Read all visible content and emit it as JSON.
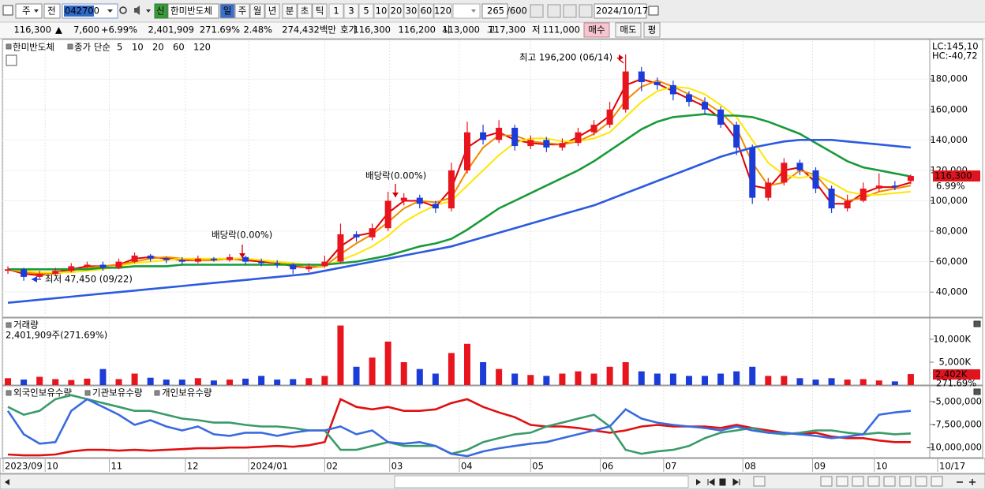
{
  "toolbar": {
    "market": "주",
    "range": "전",
    "code": "042700",
    "badge": "신",
    "name": "한미반도체",
    "periods": [
      "일",
      "주",
      "월",
      "년",
      "분",
      "초",
      "틱"
    ],
    "intervals": [
      "1",
      "3",
      "5",
      "10",
      "20",
      "30",
      "60",
      "120"
    ],
    "count": "265",
    "max": "/600",
    "date": "2024/10/17"
  },
  "quote": {
    "price": "116,300",
    "arrow": "▲",
    "change": "7,600",
    "rate": "+6.99%",
    "volume": "2,401,909",
    "volume_ratio": "271.69%",
    "turnover": "2.48%",
    "amount": "274,432백만",
    "ask_label": "호가",
    "ask": "116,300",
    "bid": "116,200",
    "open_label": "시",
    "open": "113,000",
    "high_label": "고",
    "high": "117,300",
    "low_label": "저",
    "low": "111,000",
    "buy": "매수",
    "sell": "매도",
    "avg": "평"
  },
  "chart_data": [
    {
      "type": "candlestick",
      "legend_title": "한미반도체",
      "ma_label": "종가 단순",
      "up_color": "#e8141e",
      "down_color": "#1c3cd8",
      "open": [
        54000,
        55000,
        50000,
        52000,
        54000,
        57000,
        58000,
        56000,
        60000,
        64000,
        62000,
        61000,
        60000,
        62000,
        61000,
        63000,
        60000,
        59000,
        58000,
        55000,
        57000,
        60000,
        78000,
        76000,
        82000,
        100000,
        102000,
        98000,
        95000,
        120000,
        145000,
        140000,
        148000,
        136000,
        140000,
        135000,
        138000,
        145000,
        150000,
        160000,
        185000,
        178000,
        176000,
        170000,
        165000,
        160000,
        150000,
        135000,
        102000,
        112000,
        125000,
        120000,
        108000,
        95000,
        100000,
        108000,
        110000,
        113000
      ],
      "high": [
        57000,
        56000,
        54000,
        56000,
        59000,
        60000,
        60000,
        62000,
        66000,
        65000,
        63000,
        63000,
        64000,
        63000,
        65000,
        64000,
        62000,
        61000,
        59000,
        59000,
        64000,
        85000,
        80000,
        85000,
        106000,
        105000,
        104000,
        100000,
        125000,
        152000,
        150000,
        153000,
        150000,
        143000,
        142000,
        141000,
        148000,
        153000,
        165000,
        196200,
        188000,
        181000,
        179000,
        172000,
        168000,
        162000,
        152000,
        137000,
        115000,
        128000,
        127000,
        122000,
        110000,
        104000,
        112000,
        118000,
        113000,
        117300
      ],
      "low": [
        52000,
        47450,
        49000,
        51000,
        53000,
        56000,
        54000,
        55000,
        59000,
        60000,
        59000,
        58000,
        59000,
        60000,
        60000,
        58000,
        57000,
        56000,
        52000,
        53000,
        56000,
        59000,
        73000,
        74000,
        80000,
        97000,
        95000,
        92000,
        93000,
        118000,
        137000,
        138000,
        133000,
        134000,
        132000,
        133000,
        136000,
        143000,
        148000,
        158000,
        172000,
        173000,
        166000,
        162000,
        157000,
        148000,
        130000,
        98000,
        100000,
        110000,
        117000,
        105000,
        92000,
        93000,
        99000,
        106000,
        107000,
        111000
      ],
      "close": [
        55000,
        50000,
        52000,
        54000,
        57000,
        58000,
        56000,
        60000,
        64000,
        62000,
        61000,
        60000,
        62000,
        61000,
        63000,
        60000,
        59000,
        58000,
        55000,
        57000,
        60000,
        78000,
        76000,
        82000,
        100000,
        102000,
        98000,
        95000,
        120000,
        145000,
        140000,
        148000,
        136000,
        140000,
        135000,
        138000,
        145000,
        150000,
        160000,
        185000,
        178000,
        176000,
        170000,
        165000,
        160000,
        150000,
        135000,
        102000,
        112000,
        125000,
        120000,
        108000,
        95000,
        100000,
        108000,
        110000,
        109000,
        116300
      ],
      "series": [
        {
          "name": "5",
          "color": "#e00000",
          "values": [
            55000,
            52000,
            51000,
            53000,
            55000,
            57000,
            57000,
            58000,
            62000,
            63000,
            62000,
            61000,
            61000,
            61000,
            62000,
            61000,
            60000,
            59000,
            57000,
            56000,
            58000,
            70000,
            77000,
            79000,
            92000,
            100000,
            100000,
            96000,
            108000,
            135000,
            142000,
            145000,
            140000,
            138000,
            137000,
            137000,
            142000,
            148000,
            156000,
            176000,
            180000,
            177000,
            172000,
            167000,
            162000,
            154000,
            140000,
            110000,
            108000,
            120000,
            122000,
            112000,
            98000,
            98000,
            105000,
            109000,
            109000,
            112000
          ]
        },
        {
          "name": "10",
          "color": "#f08a00",
          "values": [
            55000,
            53000,
            52000,
            52000,
            54000,
            56000,
            57000,
            58000,
            60000,
            62000,
            63000,
            62000,
            61000,
            61000,
            62000,
            62000,
            61000,
            59000,
            58000,
            56000,
            57000,
            65000,
            72000,
            78000,
            86000,
            95000,
            100000,
            99000,
            102000,
            120000,
            135000,
            143000,
            143000,
            139000,
            138000,
            137000,
            139000,
            144000,
            152000,
            166000,
            175000,
            179000,
            175000,
            170000,
            165000,
            158000,
            148000,
            125000,
            110000,
            112000,
            120000,
            117000,
            105000,
            100000,
            102000,
            106000,
            108000,
            110000
          ]
        },
        {
          "name": "20",
          "color": "#ffe600",
          "values": [
            55000,
            54000,
            53000,
            53000,
            53000,
            54000,
            55000,
            57000,
            59000,
            60000,
            61000,
            62000,
            62000,
            62000,
            62000,
            62000,
            61000,
            60000,
            59000,
            58000,
            57000,
            61000,
            65000,
            70000,
            77000,
            86000,
            92000,
            97000,
            100000,
            110000,
            120000,
            130000,
            138000,
            141000,
            141000,
            139000,
            139000,
            141000,
            145000,
            155000,
            165000,
            172000,
            175000,
            174000,
            170000,
            163000,
            155000,
            140000,
            125000,
            117000,
            115000,
            117000,
            112000,
            106000,
            104000,
            104000,
            105000,
            106000
          ]
        },
        {
          "name": "60",
          "color": "#1a9a3a",
          "values": [
            55000,
            55000,
            55000,
            55000,
            55000,
            55000,
            56000,
            56000,
            57000,
            57000,
            57000,
            58000,
            58000,
            58000,
            58000,
            58000,
            58000,
            58000,
            58000,
            58000,
            58000,
            59000,
            60000,
            62000,
            64000,
            67000,
            70000,
            72000,
            75000,
            81000,
            88000,
            95000,
            100000,
            105000,
            110000,
            115000,
            120000,
            126000,
            133000,
            140000,
            147000,
            152000,
            155000,
            156000,
            157000,
            156000,
            156000,
            155000,
            152000,
            148000,
            144000,
            138000,
            132000,
            126000,
            122000,
            120000,
            118000,
            116000
          ]
        },
        {
          "name": "120",
          "color": "#2c5ae0",
          "values": [
            33000,
            34000,
            35000,
            36000,
            37000,
            38000,
            39000,
            40000,
            41000,
            42000,
            43000,
            44000,
            45000,
            46000,
            47000,
            48000,
            49000,
            50000,
            51000,
            52000,
            54000,
            56000,
            58000,
            60000,
            62000,
            64000,
            66000,
            68000,
            70000,
            73000,
            76000,
            79000,
            82000,
            85000,
            88000,
            91000,
            94000,
            97000,
            101000,
            105000,
            109000,
            113000,
            117000,
            121000,
            125000,
            129000,
            132000,
            135000,
            137000,
            139000,
            140000,
            140000,
            140000,
            139000,
            138000,
            137000,
            136000,
            135000
          ]
        }
      ],
      "ylim": [
        23500,
        205000
      ],
      "yticks": [
        {
          "value": 40000,
          "label": "40,000"
        },
        {
          "value": 60000,
          "label": "60,000"
        },
        {
          "value": 80000,
          "label": "80,000"
        },
        {
          "value": 100000,
          "label": "100,000"
        },
        {
          "value": 120000,
          "label": "120,000"
        },
        {
          "value": 140000,
          "label": "140,000"
        },
        {
          "value": 160000,
          "label": "160,000"
        },
        {
          "value": 180000,
          "label": "180,000"
        }
      ],
      "xlim": [
        -0.35,
        58.2
      ],
      "grid": true,
      "corner_labels": [
        "LC:145,10",
        "HC:-40,72"
      ],
      "annotations": [
        "최고 196,200 (06/14)",
        "배당락(0.00%)",
        "배당락(0.00%)",
        "최저 47,450 (09/22)"
      ],
      "last_label": "116,300",
      "last_rate_label": "6.99%"
    },
    {
      "type": "bar",
      "title": "거래량",
      "subtitle": "2,401,909주(271.69%)",
      "values": [
        1500000,
        1200000,
        1800000,
        1300000,
        1100000,
        1400000,
        3500000,
        1300000,
        2500000,
        1600000,
        1200000,
        1200000,
        1500000,
        1000000,
        1200000,
        1400000,
        2000000,
        1200000,
        1300000,
        1500000,
        2000000,
        13000000,
        4000000,
        6000000,
        9500000,
        5000000,
        3500000,
        2500000,
        7000000,
        9000000,
        5000000,
        3500000,
        2500000,
        2200000,
        2000000,
        2500000,
        3000000,
        2500000,
        4000000,
        5000000,
        3000000,
        2500000,
        2500000,
        2000000,
        2000000,
        2500000,
        3000000,
        4000000,
        2000000,
        2000000,
        1500000,
        1200000,
        1500000,
        1200000,
        1300000,
        1000000,
        800000,
        2401909
      ],
      "ylim": [
        0,
        14300000
      ],
      "yticks": [
        {
          "value": 5000000,
          "label": "5,000K"
        },
        {
          "value": 10000000,
          "label": "10,000K"
        }
      ],
      "xlim": [
        -0.35,
        58.2
      ],
      "last_label": "2,402K",
      "last_rate_label": "271.69%"
    },
    {
      "type": "line",
      "series": [
        {
          "name": "외국인보유수량",
          "color": "#e01010",
          "values": [
            -10760000,
            -10850000,
            -10850000,
            -10760000,
            -10420000,
            -10250000,
            -10250000,
            -10340000,
            -10250000,
            -10340000,
            -10250000,
            -10170000,
            -10080000,
            -10080000,
            -10000000,
            -10000000,
            -9920000,
            -9830000,
            -9920000,
            -9750000,
            -9410000,
            -4750000,
            -5590000,
            -5850000,
            -5590000,
            -6020000,
            -6020000,
            -5850000,
            -5170000,
            -4750000,
            -5590000,
            -6190000,
            -6700000,
            -7540000,
            -7710000,
            -7710000,
            -7880000,
            -8140000,
            -8390000,
            -8140000,
            -7710000,
            -7540000,
            -7710000,
            -7710000,
            -7710000,
            -7880000,
            -7540000,
            -7880000,
            -8140000,
            -8390000,
            -8560000,
            -8390000,
            -8810000,
            -8980000,
            -8980000,
            -9240000,
            -9410000,
            -9410000
          ]
        },
        {
          "name": "기관보유수량",
          "color": "#3a9a6a",
          "values": [
            -5590000,
            -6440000,
            -6020000,
            -4750000,
            -4320000,
            -4750000,
            -5170000,
            -5590000,
            -6020000,
            -6020000,
            -6440000,
            -6860000,
            -7030000,
            -7290000,
            -7290000,
            -7540000,
            -7710000,
            -7710000,
            -7880000,
            -8140000,
            -8140000,
            -10250000,
            -10250000,
            -9830000,
            -9410000,
            -9830000,
            -9830000,
            -9830000,
            -10680000,
            -10250000,
            -9410000,
            -8980000,
            -8560000,
            -8390000,
            -7710000,
            -7290000,
            -6860000,
            -6440000,
            -7710000,
            -10250000,
            -10680000,
            -10420000,
            -10250000,
            -9830000,
            -8980000,
            -8390000,
            -8140000,
            -7880000,
            -8390000,
            -8560000,
            -8390000,
            -8140000,
            -8140000,
            -8390000,
            -8560000,
            -8390000,
            -8560000,
            -8470000
          ]
        },
        {
          "name": "개인보유수량",
          "color": "#3a6ae0",
          "values": [
            -6020000,
            -8560000,
            -9580000,
            -9410000,
            -6020000,
            -4750000,
            -5590000,
            -6440000,
            -7540000,
            -7030000,
            -7710000,
            -8140000,
            -7710000,
            -8560000,
            -8730000,
            -8390000,
            -8390000,
            -8730000,
            -8390000,
            -8140000,
            -8140000,
            -7710000,
            -8560000,
            -8140000,
            -9410000,
            -9580000,
            -9410000,
            -9830000,
            -10680000,
            -10930000,
            -10420000,
            -10080000,
            -9830000,
            -9580000,
            -9410000,
            -8980000,
            -8560000,
            -8140000,
            -7710000,
            -5850000,
            -6860000,
            -7290000,
            -7540000,
            -7710000,
            -7880000,
            -8140000,
            -7710000,
            -8140000,
            -8390000,
            -8390000,
            -8560000,
            -8730000,
            -8980000,
            -8810000,
            -8560000,
            -6440000,
            -6190000,
            -6020000
          ]
        }
      ],
      "ylim": [
        -11100000,
        -3470000
      ],
      "yticks": [
        {
          "value": -5000000,
          "label": "-5,000,000"
        },
        {
          "value": -7500000,
          "label": "-7,500,000"
        },
        {
          "value": -10000000,
          "label": "-10,000,000"
        }
      ],
      "xlim": [
        -0.35,
        58.2
      ],
      "xticks": [
        {
          "value": -0.3,
          "label": "2023/09"
        },
        {
          "value": 2.35,
          "label": "10"
        },
        {
          "value": 6.4,
          "label": "11"
        },
        {
          "value": 11.2,
          "label": "12"
        },
        {
          "value": 15.2,
          "label": "2024/01"
        },
        {
          "value": 20.0,
          "label": "02"
        },
        {
          "value": 24.1,
          "label": "03"
        },
        {
          "value": 28.5,
          "label": "04"
        },
        {
          "value": 33.0,
          "label": "05"
        },
        {
          "value": 37.4,
          "label": "06"
        },
        {
          "value": 41.4,
          "label": "07"
        },
        {
          "value": 46.4,
          "label": "08"
        },
        {
          "value": 50.8,
          "label": "09"
        },
        {
          "value": 54.7,
          "label": "10"
        },
        {
          "value": 58.7,
          "label": "10/17"
        }
      ]
    }
  ]
}
